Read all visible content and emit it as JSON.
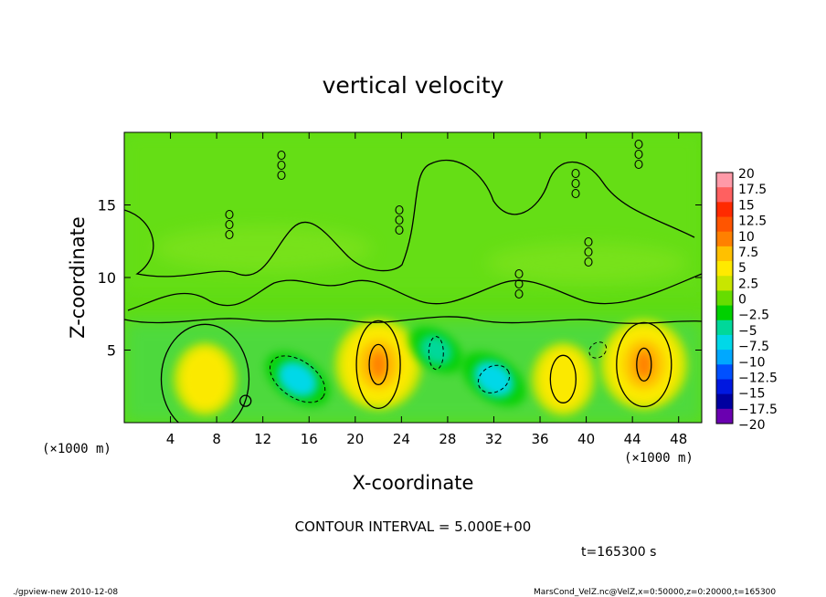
{
  "chart_data": {
    "type": "heatmap",
    "title": "vertical velocity",
    "xlabel": "X-coordinate",
    "ylabel": "Z-coordinate",
    "x_unit_left": "(×1000 m)",
    "x_unit_right": "(×1000 m)",
    "xlim": [
      0,
      50
    ],
    "ylim": [
      0,
      20
    ],
    "x_ticks": [
      4,
      8,
      12,
      16,
      20,
      24,
      28,
      32,
      36,
      40,
      44,
      48
    ],
    "y_ticks": [
      5,
      10,
      15
    ],
    "colorbar": {
      "levels": [
        "20",
        "17.5",
        "15",
        "12.5",
        "10",
        "7.5",
        "5",
        "2.5",
        "0",
        "−2.5",
        "−5",
        "−7.5",
        "−10",
        "−12.5",
        "−15",
        "−17.5",
        "−20"
      ],
      "colors": [
        "#ff9aa8",
        "#ff6060",
        "#ff2a00",
        "#ff5500",
        "#ff8000",
        "#ffc000",
        "#ffea00",
        "#c8e600",
        "#66dd00",
        "#00d000",
        "#00d89a",
        "#00d8e8",
        "#00a8ff",
        "#0050ff",
        "#0018e0",
        "#0000a0",
        "#6a00b0"
      ]
    },
    "features": [
      {
        "x": 22,
        "z": 4,
        "value": 10,
        "sign": "updraft"
      },
      {
        "x": 45,
        "z": 4,
        "value": 10,
        "sign": "updraft"
      },
      {
        "x": 15,
        "z": 3,
        "value": -7.5,
        "sign": "downdraft"
      },
      {
        "x": 32,
        "z": 3,
        "value": -7.5,
        "sign": "downdraft"
      },
      {
        "x": 27,
        "z": 5,
        "value": -5,
        "sign": "downdraft"
      },
      {
        "x": 38,
        "z": 3,
        "value": 5,
        "sign": "updraft"
      },
      {
        "x": 7,
        "z": 3,
        "value": 5,
        "sign": "updraft"
      }
    ],
    "grid": false,
    "legend_placement": "right"
  },
  "annotations": {
    "contour_interval": "CONTOUR INTERVAL = 5.000E+00",
    "time": "t=165300 s",
    "footer_left": "./gpview-new   2010-12-08",
    "footer_right": "MarsCond_VelZ.nc@VelZ,x=0:50000,z=0:20000,t=165300"
  }
}
